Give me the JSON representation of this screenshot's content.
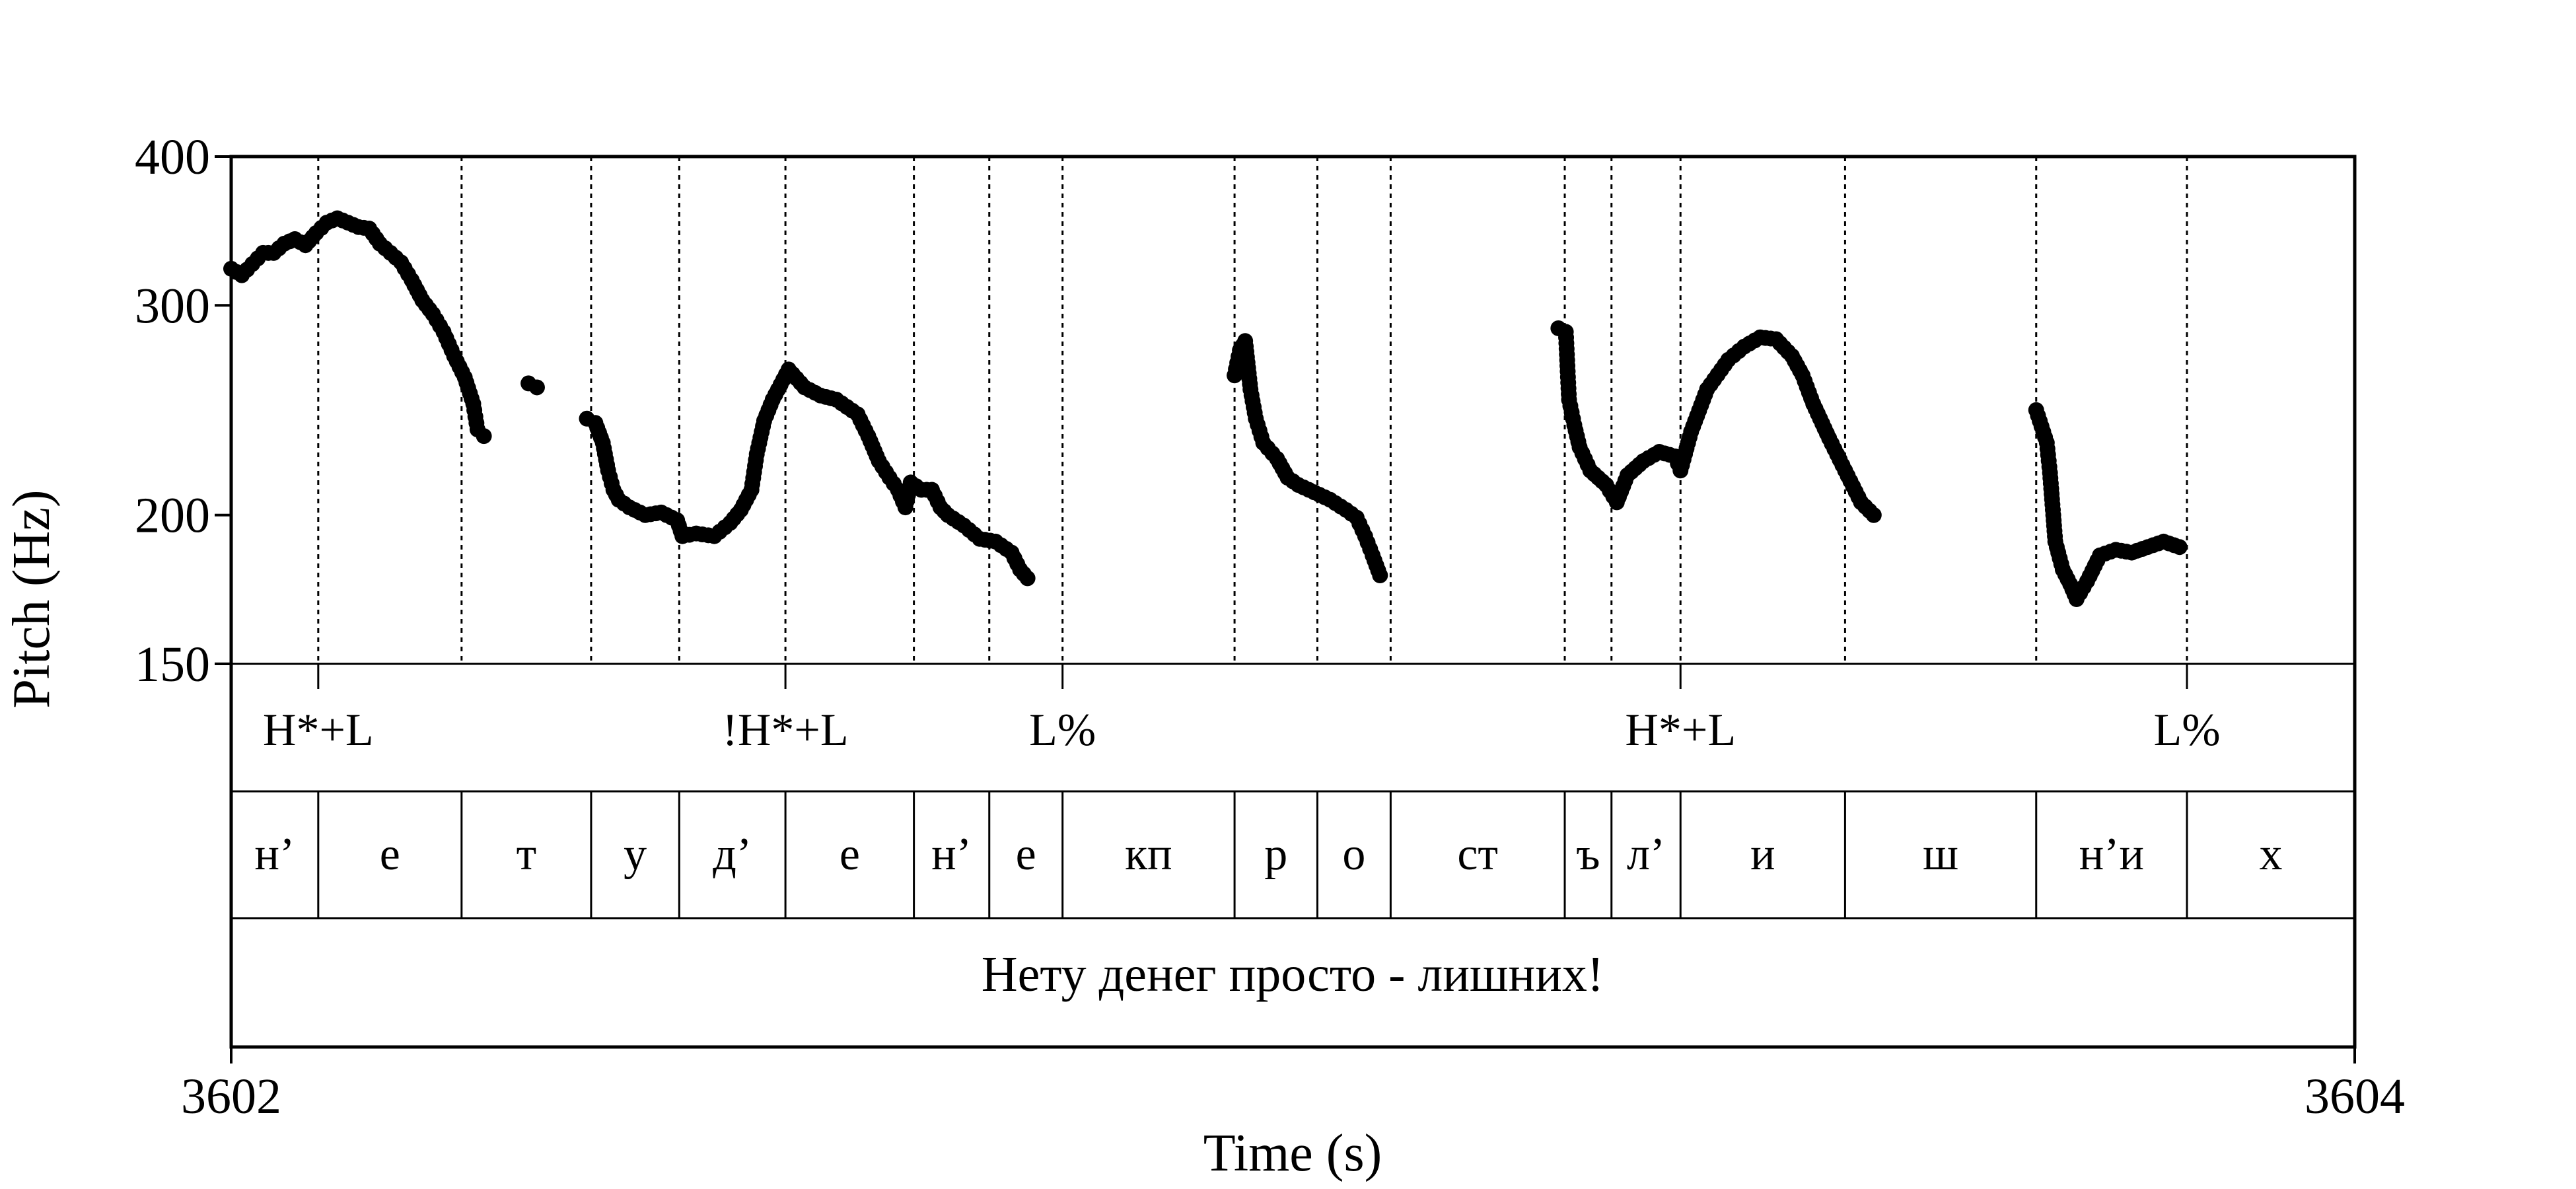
{
  "chart_data": {
    "type": "scatter",
    "xlabel": "Time (s)",
    "ylabel": "Pitch (Hz)",
    "xlim": [
      3602,
      3604
    ],
    "ylim": [
      150,
      400
    ],
    "y_scale": "log",
    "x_ticks": [
      {
        "value": 3602,
        "label": "3602"
      },
      {
        "value": 3604,
        "label": "3604"
      }
    ],
    "y_ticks": [
      {
        "value": 400,
        "label": "400"
      },
      {
        "value": 300,
        "label": "300"
      },
      {
        "value": 200,
        "label": "200"
      },
      {
        "value": 150,
        "label": "150"
      }
    ],
    "pitch_segments": [
      [
        [
          3602.0,
          322
        ],
        [
          3602.01,
          318
        ],
        [
          3602.02,
          325
        ],
        [
          3602.03,
          332
        ],
        [
          3602.04,
          332
        ],
        [
          3602.05,
          338
        ],
        [
          3602.06,
          341
        ],
        [
          3602.07,
          337
        ],
        [
          3602.08,
          345
        ],
        [
          3602.09,
          352
        ],
        [
          3602.1,
          355
        ],
        [
          3602.11,
          352
        ],
        [
          3602.12,
          349
        ],
        [
          3602.13,
          348
        ],
        [
          3602.14,
          338
        ],
        [
          3602.15,
          332
        ],
        [
          3602.16,
          326
        ],
        [
          3602.17,
          315
        ],
        [
          3602.18,
          303
        ],
        [
          3602.19,
          295
        ],
        [
          3602.2,
          285
        ],
        [
          3602.21,
          272
        ],
        [
          3602.22,
          261
        ],
        [
          3602.228,
          248
        ],
        [
          3602.232,
          236
        ],
        [
          3602.238,
          233
        ]
      ],
      [
        [
          3602.28,
          258
        ],
        [
          3602.288,
          256
        ]
      ],
      [
        [
          3602.335,
          241
        ],
        [
          3602.343,
          239
        ],
        [
          3602.35,
          230
        ],
        [
          3602.355,
          218
        ],
        [
          3602.36,
          210
        ],
        [
          3602.365,
          206
        ],
        [
          3602.375,
          203
        ],
        [
          3602.39,
          200
        ],
        [
          3602.405,
          201
        ],
        [
          3602.42,
          198
        ],
        [
          3602.425,
          192
        ],
        [
          3602.438,
          193
        ],
        [
          3602.455,
          192
        ],
        [
          3602.47,
          197
        ],
        [
          3602.48,
          202
        ],
        [
          3602.49,
          210
        ],
        [
          3602.495,
          225
        ],
        [
          3602.502,
          240
        ],
        [
          3602.51,
          250
        ],
        [
          3602.525,
          265
        ],
        [
          3602.54,
          256
        ],
        [
          3602.555,
          252
        ],
        [
          3602.57,
          250
        ],
        [
          3602.59,
          243
        ],
        [
          3602.6,
          233
        ],
        [
          3602.61,
          222
        ],
        [
          3602.62,
          215
        ],
        [
          3602.628,
          210
        ],
        [
          3602.635,
          203
        ],
        [
          3602.64,
          213
        ],
        [
          3602.65,
          210
        ],
        [
          3602.66,
          210
        ],
        [
          3602.668,
          203
        ],
        [
          3602.675,
          200
        ],
        [
          3602.69,
          196
        ],
        [
          3602.705,
          191
        ],
        [
          3602.72,
          190
        ],
        [
          3602.735,
          186
        ],
        [
          3602.743,
          180
        ],
        [
          3602.75,
          177
        ]
      ],
      [
        [
          3602.945,
          262
        ],
        [
          3602.95,
          275
        ],
        [
          3602.955,
          280
        ],
        [
          3602.96,
          255
        ],
        [
          3602.965,
          241
        ],
        [
          3602.972,
          230
        ],
        [
          3602.985,
          223
        ],
        [
          3602.995,
          215
        ],
        [
          3603.005,
          212
        ],
        [
          3603.02,
          209
        ],
        [
          3603.035,
          206
        ],
        [
          3603.05,
          202
        ],
        [
          3603.06,
          199
        ],
        [
          3603.068,
          192
        ],
        [
          3603.075,
          185
        ],
        [
          3603.082,
          178
        ]
      ],
      [
        [
          3603.25,
          287
        ],
        [
          3603.257,
          285
        ],
        [
          3603.26,
          250
        ],
        [
          3603.265,
          238
        ],
        [
          3603.27,
          228
        ],
        [
          3603.28,
          218
        ],
        [
          3603.295,
          212
        ],
        [
          3603.305,
          205
        ],
        [
          3603.315,
          216
        ],
        [
          3603.33,
          222
        ],
        [
          3603.345,
          226
        ],
        [
          3603.36,
          224
        ],
        [
          3603.365,
          218
        ],
        [
          3603.375,
          235
        ],
        [
          3603.39,
          255
        ],
        [
          3603.41,
          270
        ],
        [
          3603.425,
          277
        ],
        [
          3603.44,
          282
        ],
        [
          3603.455,
          281
        ],
        [
          3603.47,
          272
        ],
        [
          3603.48,
          262
        ],
        [
          3603.49,
          248
        ],
        [
          3603.505,
          232
        ],
        [
          3603.52,
          218
        ],
        [
          3603.535,
          205
        ],
        [
          3603.547,
          200
        ]
      ],
      [
        [
          3603.7,
          245
        ],
        [
          3603.71,
          230
        ],
        [
          3603.713,
          217
        ],
        [
          3603.718,
          190
        ],
        [
          3603.725,
          180
        ],
        [
          3603.732,
          175
        ],
        [
          3603.738,
          170
        ],
        [
          3603.748,
          176
        ],
        [
          3603.76,
          185
        ],
        [
          3603.775,
          187
        ],
        [
          3603.79,
          186
        ],
        [
          3603.805,
          188
        ],
        [
          3603.82,
          190
        ],
        [
          3603.835,
          188
        ]
      ]
    ],
    "tones_tier": [
      {
        "time": 3602.082,
        "label": "H*+L"
      },
      {
        "time": 3602.522,
        "label": "!H*+L"
      },
      {
        "time": 3602.783,
        "label": "L%"
      },
      {
        "time": 3603.365,
        "label": "H*+L"
      },
      {
        "time": 3603.842,
        "label": "L%"
      }
    ],
    "tones_dotted_boundaries": [
      3602.217,
      3602.339,
      3602.422,
      3602.643,
      3602.714,
      3602.945,
      3603.023,
      3603.092,
      3603.256,
      3603.3,
      3603.52,
      3603.7
    ],
    "segments_tier": [
      {
        "start": 3602.0,
        "end": 3602.082,
        "label": "н’"
      },
      {
        "start": 3602.082,
        "end": 3602.217,
        "label": "е"
      },
      {
        "start": 3602.217,
        "end": 3602.339,
        "label": "т"
      },
      {
        "start": 3602.339,
        "end": 3602.422,
        "label": "у"
      },
      {
        "start": 3602.422,
        "end": 3602.522,
        "label": "д’"
      },
      {
        "start": 3602.522,
        "end": 3602.643,
        "label": "е"
      },
      {
        "start": 3602.643,
        "end": 3602.714,
        "label": "н’"
      },
      {
        "start": 3602.714,
        "end": 3602.783,
        "label": "е"
      },
      {
        "start": 3602.783,
        "end": 3602.945,
        "label": "кп"
      },
      {
        "start": 3602.945,
        "end": 3603.023,
        "label": "р"
      },
      {
        "start": 3603.023,
        "end": 3603.092,
        "label": "о"
      },
      {
        "start": 3603.092,
        "end": 3603.256,
        "label": "ст"
      },
      {
        "start": 3603.256,
        "end": 3603.3,
        "label": "ъ"
      },
      {
        "start": 3603.3,
        "end": 3603.365,
        "label": "л’"
      },
      {
        "start": 3603.365,
        "end": 3603.52,
        "label": "и"
      },
      {
        "start": 3603.52,
        "end": 3603.7,
        "label": "ш"
      },
      {
        "start": 3603.7,
        "end": 3603.842,
        "label": "н’и"
      },
      {
        "start": 3603.842,
        "end": 3604.0,
        "label": "х"
      }
    ],
    "sentence": "Нету денег просто - лишних!"
  }
}
